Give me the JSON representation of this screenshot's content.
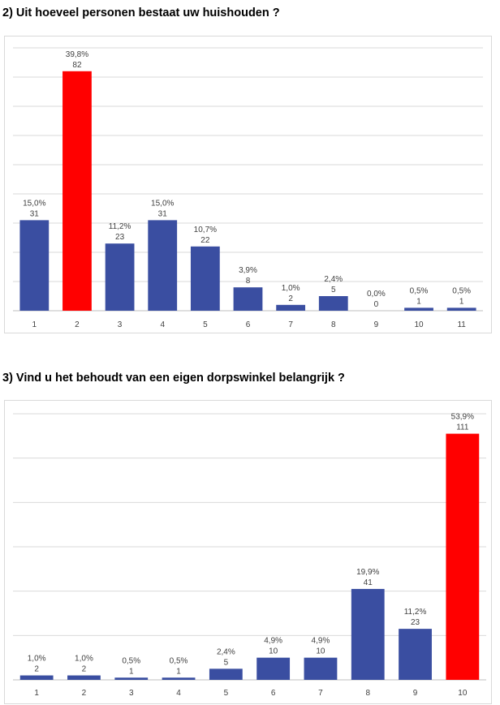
{
  "charts": [
    {
      "title": "2) Uit hoeveel personen bestaat uw huishouden ?",
      "chart_data": {
        "type": "bar",
        "categories": [
          "1",
          "2",
          "3",
          "4",
          "5",
          "6",
          "7",
          "8",
          "9",
          "10",
          "11"
        ],
        "values": [
          31,
          82,
          23,
          31,
          22,
          8,
          2,
          5,
          0,
          1,
          1
        ],
        "percent_labels": [
          "15,0%",
          "39,8%",
          "11,2%",
          "15,0%",
          "10,7%",
          "3,9%",
          "1,0%",
          "2,4%",
          "0,0%",
          "0,5%",
          "0,5%"
        ],
        "count_labels": [
          "31",
          "82",
          "23",
          "31",
          "22",
          "8",
          "2",
          "5",
          "0",
          "1",
          "1"
        ],
        "highlight_index": 1,
        "ylim": [
          0,
          90
        ],
        "grid": true,
        "legend": "none"
      }
    },
    {
      "title": "3) Vind u het behoudt van een eigen dorpswinkel belangrijk ?",
      "chart_data": {
        "type": "bar",
        "categories": [
          "1",
          "2",
          "3",
          "4",
          "5",
          "6",
          "7",
          "8",
          "9",
          "10"
        ],
        "values": [
          2,
          2,
          1,
          1,
          5,
          10,
          10,
          41,
          23,
          111
        ],
        "percent_labels": [
          "1,0%",
          "1,0%",
          "0,5%",
          "0,5%",
          "2,4%",
          "4,9%",
          "4,9%",
          "19,9%",
          "11,2%",
          "53,9%"
        ],
        "count_labels": [
          "2",
          "2",
          "1",
          "1",
          "5",
          "10",
          "10",
          "41",
          "23",
          "111"
        ],
        "highlight_index": 9,
        "ylim": [
          0,
          120
        ],
        "grid": true,
        "legend": "none"
      }
    }
  ],
  "colors": {
    "bar": "#3a4ea1",
    "highlight": "#ff0000",
    "grid": "#d9d9d9",
    "text": "#404040"
  }
}
